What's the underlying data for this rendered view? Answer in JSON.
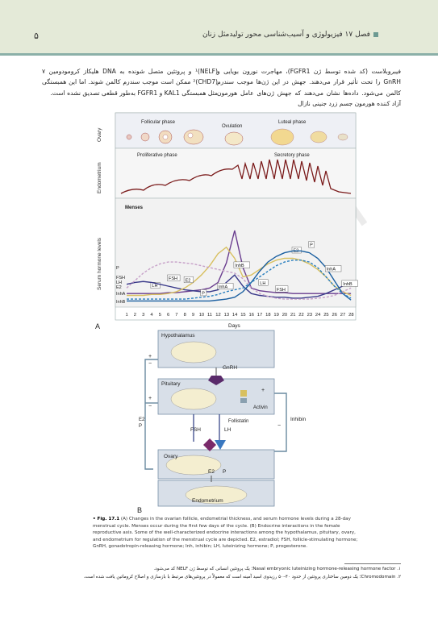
{
  "header": {
    "page_number": "۵",
    "chapter_title": "فصل ۱۷  فیزیولوژی و آسیب‌شناسی محور تولیدمثل زنان"
  },
  "body_text": {
    "right_column": "فیبروبلاست (کد شده توسط ژن FGFR1)، مهاجرت نورون بویایی و GnRH را تحت تأثیر قرار می‌دهند. جهش در این ژن‌ها موجب سندرم کالمن می‌شود. داده‌ها نشان می‌دهند که جهش ژن‌های عامل هورمون آزاد کننده هورمون جسم زرد جنینی نازال",
    "left_column": "(NELF)¹ و پروتئین متصل شونده به DNA هلیکاز کرومودومین ۷ (CHD7)² ممکن است موجب سندرم کالمن شوند. اما این همبستگی مثل همبستگی KAL1 و FGFR1 به‌طور قطعی تصدیق نشده است."
  },
  "figure": {
    "panel_a": {
      "row_labels": [
        "Ovary",
        "Endometrium",
        "Serum hormone levels"
      ],
      "ovary_phases": [
        "Follicular phase",
        "Ovulation",
        "Luteal phase"
      ],
      "endometrium_phases": [
        "Proliferative phase",
        "Secretory phase"
      ],
      "menses_label": "Menses",
      "panel_letter": "A",
      "axis_label": "Days",
      "left_labels": [
        "P",
        "FSH",
        "LH",
        "E2",
        "InhA",
        "InhB"
      ]
    },
    "panel_b": {
      "panel_letter": "B",
      "hypothalamus": "Hypothalamus",
      "gnrh": "GnRH",
      "pituitary": "Pituitary",
      "activin": "Activin",
      "follistatin": "Follistatin",
      "inhibin": "Inhibin",
      "fsh": "FSH",
      "lh": "LH",
      "ovary": "Ovary",
      "e2": "E2",
      "p": "P",
      "e2_p_left": "E2\nP",
      "endometrium": "Endometrium",
      "plus": "+",
      "minus": "−"
    },
    "watermark": "JPBH"
  },
  "chart_data": {
    "type": "line",
    "xlabel": "Days",
    "x": [
      1,
      2,
      3,
      4,
      5,
      6,
      7,
      8,
      9,
      10,
      11,
      12,
      13,
      14,
      15,
      16,
      17,
      18,
      19,
      20,
      21,
      22,
      23,
      24,
      25,
      26,
      27,
      28
    ],
    "series": [
      {
        "name": "LH",
        "color": "#6a3d8f",
        "values": [
          12,
          12,
          12,
          12,
          12,
          13,
          13,
          14,
          15,
          16,
          18,
          24,
          45,
          80,
          40,
          18,
          15,
          14,
          13,
          13,
          12,
          12,
          12,
          12,
          12,
          12,
          12,
          12
        ]
      },
      {
        "name": "FSH",
        "color": "#3a3a8a",
        "values": [
          22,
          24,
          25,
          24,
          22,
          20,
          18,
          16,
          15,
          14,
          14,
          16,
          24,
          32,
          20,
          12,
          10,
          9,
          8,
          8,
          7,
          7,
          8,
          9,
          12,
          16,
          20,
          22
        ]
      },
      {
        "name": "E2",
        "color": "#d8c060",
        "values": [
          10,
          10,
          10,
          11,
          11,
          12,
          14,
          18,
          24,
          32,
          42,
          55,
          62,
          50,
          30,
          32,
          38,
          44,
          48,
          50,
          50,
          48,
          44,
          38,
          30,
          20,
          14,
          10
        ]
      },
      {
        "name": "P",
        "color": "#1a5fa0",
        "values": [
          4,
          4,
          4,
          4,
          4,
          4,
          4,
          4,
          4,
          4,
          4,
          5,
          6,
          8,
          14,
          24,
          36,
          46,
          52,
          56,
          58,
          58,
          56,
          50,
          40,
          26,
          12,
          5
        ]
      },
      {
        "name": "InhA",
        "color": "#2a7fbf",
        "values": [
          6,
          6,
          6,
          6,
          6,
          6,
          6,
          6,
          7,
          8,
          9,
          11,
          14,
          16,
          18,
          24,
          30,
          36,
          42,
          46,
          48,
          48,
          46,
          40,
          30,
          20,
          12,
          7
        ]
      },
      {
        "name": "InhB",
        "color": "#c6a0c8",
        "values": [
          18,
          26,
          34,
          40,
          44,
          46,
          46,
          45,
          44,
          42,
          40,
          38,
          36,
          34,
          28,
          18,
          12,
          9,
          7,
          6,
          6,
          6,
          6,
          7,
          8,
          10,
          14,
          18
        ]
      }
    ]
  },
  "caption": {
    "label": "• Fig. 17.1",
    "text": "(A) Changes in the ovarian follicle, endometrial thickness, and serum hormone levels during a 28-day menstrual cycle. Menses occur during the first few days of the cycle. (B) Endocrine interactions in the female reproductive axis. Some of the well-characterized endocrine interactions among the hypothalamus, pituitary, ovary, and endometrium for regulation of the menstrual cycle are depicted. E2, estradiol; FSH, follicle-stimulating hormone; GnRH, gonadotropin-releasing hormone; Inh, inhibin; LH, luteinizing hormone; P, progesterone."
  },
  "footnotes": [
    "۱. Nasal embryonic luteinizing hormone-releasing hormone factor؛ یک پروتئین انسانی که توسط ژن NELF کد می‌شود.",
    "۲. Chromodomain؛ یک دومین ساختاری پروتئین از حدود ۴۰–۵۰ رزیدوی اسید آمینه است که معمولاً در پروتئین‌های مرتبط با بازسازی و اصلاح کروماتین یافت شده است."
  ]
}
